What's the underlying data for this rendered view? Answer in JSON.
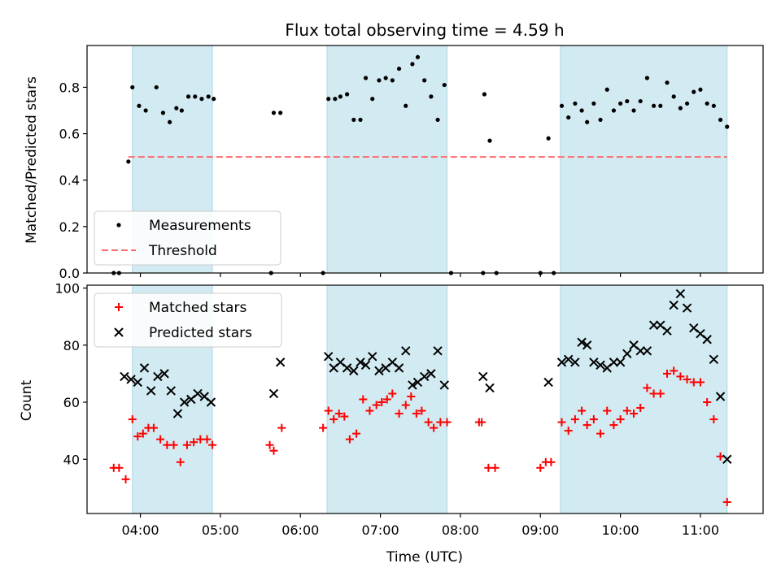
{
  "figure_title": "Flux total observing time = 4.59 h",
  "colors": {
    "band": "#add8e6",
    "threshold": "#ff6b6b",
    "matched": "#ff0000",
    "predicted": "#000000",
    "measurement": "#000000"
  },
  "chart_data": [
    {
      "type": "scatter",
      "ylabel": "Matched/Predicted stars",
      "xlim": [
        "03:20",
        "11:47"
      ],
      "ylim": [
        0,
        0.98
      ],
      "yticks": [
        0.0,
        0.2,
        0.4,
        0.6,
        0.8
      ],
      "ytick_labels": [
        "0.0",
        "0.2",
        "0.4",
        "0.6",
        "0.8"
      ],
      "legend": {
        "position": "bottom-left",
        "entries": [
          {
            "label": "Measurements",
            "marker": "dot"
          },
          {
            "label": "Threshold",
            "marker": "dashed-line"
          }
        ]
      },
      "threshold": 0.5,
      "threshold_x": [
        "03:51",
        "11:20"
      ],
      "highlight_bands": [
        [
          "03:54",
          "04:54"
        ],
        [
          "06:20",
          "07:50"
        ],
        [
          "09:15",
          "11:20"
        ]
      ],
      "series": [
        {
          "name": "Measurements",
          "points": [
            [
              "03:40",
              0
            ],
            [
              "03:44",
              0
            ],
            [
              "03:51",
              0.48
            ],
            [
              "03:54",
              0.8
            ],
            [
              "03:59",
              0.72
            ],
            [
              "04:04",
              0.7
            ],
            [
              "04:12",
              0.8
            ],
            [
              "04:17",
              0.69
            ],
            [
              "04:22",
              0.65
            ],
            [
              "04:27",
              0.71
            ],
            [
              "04:31",
              0.7
            ],
            [
              "04:36",
              0.76
            ],
            [
              "04:41",
              0.76
            ],
            [
              "04:46",
              0.75
            ],
            [
              "04:51",
              0.76
            ],
            [
              "04:55",
              0.75
            ],
            [
              "05:38",
              0
            ],
            [
              "05:40",
              0.69
            ],
            [
              "05:45",
              0.69
            ],
            [
              "06:17",
              0
            ],
            [
              "06:21",
              0.75
            ],
            [
              "06:26",
              0.75
            ],
            [
              "06:30",
              0.76
            ],
            [
              "06:35",
              0.77
            ],
            [
              "06:40",
              0.66
            ],
            [
              "06:45",
              0.66
            ],
            [
              "06:49",
              0.84
            ],
            [
              "06:54",
              0.75
            ],
            [
              "06:59",
              0.83
            ],
            [
              "07:04",
              0.84
            ],
            [
              "07:09",
              0.83
            ],
            [
              "07:14",
              0.88
            ],
            [
              "07:19",
              0.72
            ],
            [
              "07:24",
              0.9
            ],
            [
              "07:28",
              0.93
            ],
            [
              "07:33",
              0.83
            ],
            [
              "07:38",
              0.76
            ],
            [
              "07:43",
              0.66
            ],
            [
              "07:48",
              0.81
            ],
            [
              "07:53",
              0
            ],
            [
              "08:17",
              0
            ],
            [
              "08:18",
              0.77
            ],
            [
              "08:22",
              0.57
            ],
            [
              "08:27",
              0
            ],
            [
              "09:00",
              0
            ],
            [
              "09:06",
              0.58
            ],
            [
              "09:10",
              0
            ],
            [
              "09:16",
              0.72
            ],
            [
              "09:21",
              0.67
            ],
            [
              "09:26",
              0.73
            ],
            [
              "09:31",
              0.7
            ],
            [
              "09:35",
              0.65
            ],
            [
              "09:40",
              0.73
            ],
            [
              "09:45",
              0.66
            ],
            [
              "09:50",
              0.79
            ],
            [
              "09:55",
              0.7
            ],
            [
              "10:00",
              0.73
            ],
            [
              "10:05",
              0.74
            ],
            [
              "10:10",
              0.7
            ],
            [
              "10:15",
              0.74
            ],
            [
              "10:20",
              0.84
            ],
            [
              "10:25",
              0.72
            ],
            [
              "10:30",
              0.72
            ],
            [
              "10:35",
              0.82
            ],
            [
              "10:40",
              0.76
            ],
            [
              "10:45",
              0.71
            ],
            [
              "10:50",
              0.73
            ],
            [
              "10:55",
              0.78
            ],
            [
              "11:00",
              0.79
            ],
            [
              "11:05",
              0.73
            ],
            [
              "11:10",
              0.72
            ],
            [
              "11:15",
              0.66
            ],
            [
              "11:20",
              0.63
            ]
          ]
        }
      ]
    },
    {
      "type": "scatter",
      "xlabel": "Time (UTC)",
      "ylabel": "Count",
      "xlim": [
        "03:20",
        "11:47"
      ],
      "ylim": [
        21,
        101
      ],
      "yticks": [
        40,
        60,
        80,
        100
      ],
      "ytick_labels": [
        "40",
        "60",
        "80",
        "100"
      ],
      "xticks": [
        "04:00",
        "05:00",
        "06:00",
        "07:00",
        "08:00",
        "09:00",
        "10:00",
        "11:00"
      ],
      "xtick_labels": [
        "04:00",
        "05:00",
        "06:00",
        "07:00",
        "08:00",
        "09:00",
        "10:00",
        "11:00"
      ],
      "legend": {
        "position": "top-left",
        "entries": [
          {
            "label": "Matched stars",
            "marker": "plus"
          },
          {
            "label": "Predicted stars",
            "marker": "x"
          }
        ]
      },
      "highlight_bands": [
        [
          "03:54",
          "04:54"
        ],
        [
          "06:20",
          "07:50"
        ],
        [
          "09:15",
          "11:20"
        ]
      ],
      "series": [
        {
          "name": "Matched stars",
          "points": [
            [
              "03:40",
              37
            ],
            [
              "03:44",
              37
            ],
            [
              "03:49",
              33
            ],
            [
              "03:54",
              54
            ],
            [
              "03:58",
              48
            ],
            [
              "04:02",
              49
            ],
            [
              "04:06",
              51
            ],
            [
              "04:10",
              51
            ],
            [
              "04:15",
              47
            ],
            [
              "04:20",
              45
            ],
            [
              "04:25",
              45
            ],
            [
              "04:30",
              39
            ],
            [
              "04:35",
              45
            ],
            [
              "04:40",
              46
            ],
            [
              "04:45",
              47
            ],
            [
              "04:50",
              47
            ],
            [
              "04:54",
              45
            ],
            [
              "05:37",
              45
            ],
            [
              "05:40",
              43
            ],
            [
              "05:46",
              51
            ],
            [
              "06:17",
              51
            ],
            [
              "06:21",
              57
            ],
            [
              "06:25",
              54
            ],
            [
              "06:29",
              56
            ],
            [
              "06:33",
              55
            ],
            [
              "06:37",
              47
            ],
            [
              "06:42",
              49
            ],
            [
              "06:47",
              61
            ],
            [
              "06:52",
              57
            ],
            [
              "06:57",
              59
            ],
            [
              "07:01",
              60
            ],
            [
              "07:05",
              61
            ],
            [
              "07:09",
              63
            ],
            [
              "07:14",
              56
            ],
            [
              "07:19",
              59
            ],
            [
              "07:23",
              62
            ],
            [
              "07:27",
              56
            ],
            [
              "07:31",
              57
            ],
            [
              "07:36",
              53
            ],
            [
              "07:40",
              51
            ],
            [
              "07:45",
              53
            ],
            [
              "07:50",
              53
            ],
            [
              "08:14",
              53
            ],
            [
              "08:16",
              53
            ],
            [
              "08:21",
              37
            ],
            [
              "08:26",
              37
            ],
            [
              "09:00",
              37
            ],
            [
              "09:04",
              39
            ],
            [
              "09:08",
              39
            ],
            [
              "09:16",
              53
            ],
            [
              "09:21",
              50
            ],
            [
              "09:26",
              54
            ],
            [
              "09:31",
              57
            ],
            [
              "09:35",
              52
            ],
            [
              "09:40",
              54
            ],
            [
              "09:45",
              49
            ],
            [
              "09:50",
              57
            ],
            [
              "09:55",
              52
            ],
            [
              "10:00",
              54
            ],
            [
              "10:05",
              57
            ],
            [
              "10:10",
              56
            ],
            [
              "10:15",
              58
            ],
            [
              "10:20",
              65
            ],
            [
              "10:25",
              63
            ],
            [
              "10:30",
              63
            ],
            [
              "10:35",
              70
            ],
            [
              "10:40",
              71
            ],
            [
              "10:45",
              69
            ],
            [
              "10:50",
              68
            ],
            [
              "10:55",
              67
            ],
            [
              "11:00",
              67
            ],
            [
              "11:05",
              60
            ],
            [
              "11:10",
              54
            ],
            [
              "11:15",
              41
            ],
            [
              "11:20",
              25
            ]
          ]
        },
        {
          "name": "Predicted stars",
          "points": [
            [
              "03:48",
              69
            ],
            [
              "03:53",
              68
            ],
            [
              "03:58",
              67
            ],
            [
              "04:03",
              72
            ],
            [
              "04:08",
              64
            ],
            [
              "04:13",
              69
            ],
            [
              "04:18",
              70
            ],
            [
              "04:23",
              64
            ],
            [
              "04:28",
              56
            ],
            [
              "04:33",
              60
            ],
            [
              "04:38",
              61
            ],
            [
              "04:43",
              63
            ],
            [
              "04:48",
              62
            ],
            [
              "04:53",
              60
            ],
            [
              "05:40",
              63
            ],
            [
              "05:45",
              74
            ],
            [
              "06:21",
              76
            ],
            [
              "06:25",
              72
            ],
            [
              "06:30",
              74
            ],
            [
              "06:35",
              72
            ],
            [
              "06:40",
              71
            ],
            [
              "06:45",
              74
            ],
            [
              "06:49",
              73
            ],
            [
              "06:54",
              76
            ],
            [
              "06:59",
              71
            ],
            [
              "07:04",
              72
            ],
            [
              "07:09",
              74
            ],
            [
              "07:14",
              72
            ],
            [
              "07:19",
              78
            ],
            [
              "07:24",
              66
            ],
            [
              "07:28",
              67
            ],
            [
              "07:33",
              69
            ],
            [
              "07:38",
              70
            ],
            [
              "07:43",
              78
            ],
            [
              "07:48",
              66
            ],
            [
              "08:17",
              69
            ],
            [
              "08:22",
              65
            ],
            [
              "09:06",
              67
            ],
            [
              "09:16",
              74
            ],
            [
              "09:21",
              75
            ],
            [
              "09:26",
              74
            ],
            [
              "09:31",
              81
            ],
            [
              "09:35",
              80
            ],
            [
              "09:40",
              74
            ],
            [
              "09:45",
              73
            ],
            [
              "09:50",
              72
            ],
            [
              "09:55",
              74
            ],
            [
              "10:00",
              74
            ],
            [
              "10:05",
              77
            ],
            [
              "10:10",
              80
            ],
            [
              "10:15",
              78
            ],
            [
              "10:20",
              78
            ],
            [
              "10:25",
              87
            ],
            [
              "10:30",
              87
            ],
            [
              "10:35",
              85
            ],
            [
              "10:40",
              94
            ],
            [
              "10:45",
              98
            ],
            [
              "10:50",
              93
            ],
            [
              "10:55",
              86
            ],
            [
              "11:00",
              84
            ],
            [
              "11:05",
              82
            ],
            [
              "11:10",
              75
            ],
            [
              "11:15",
              62
            ],
            [
              "11:20",
              40
            ]
          ]
        }
      ]
    }
  ]
}
